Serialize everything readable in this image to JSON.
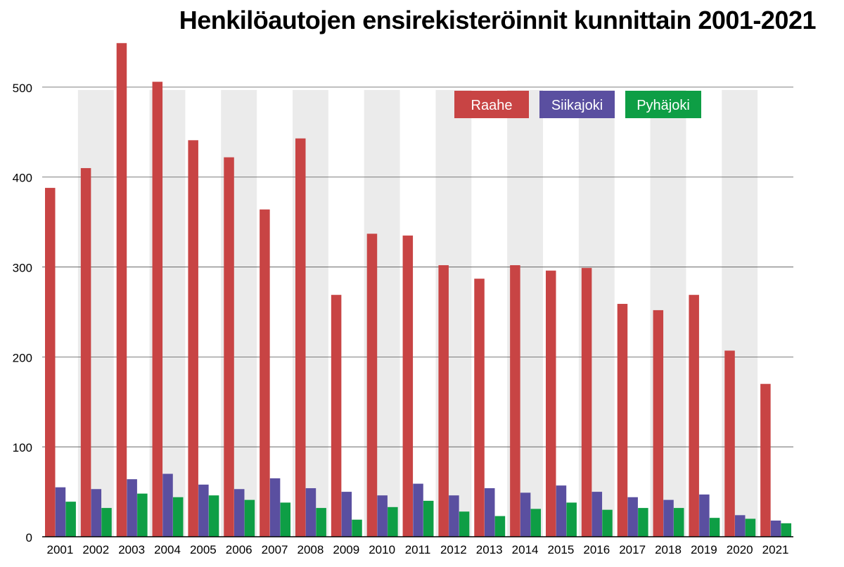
{
  "chart_data": {
    "type": "bar",
    "title": "Henkilöautojen ensirekisteröinnit kunnittain 2001-2021",
    "xlabel": "",
    "ylabel": "",
    "ylim": [
      0,
      550
    ],
    "yticks": [
      0,
      100,
      200,
      300,
      400,
      500
    ],
    "grid": true,
    "legend_position": "top-right",
    "categories": [
      "2001",
      "2002",
      "2003",
      "2004",
      "2005",
      "2006",
      "2007",
      "2008",
      "2009",
      "2010",
      "2011",
      "2012",
      "2013",
      "2014",
      "2015",
      "2016",
      "2017",
      "2018",
      "2019",
      "2020",
      "2021"
    ],
    "series": [
      {
        "name": "Raahe",
        "color": "#c84444",
        "values": [
          388,
          410,
          549,
          506,
          441,
          422,
          364,
          443,
          269,
          337,
          335,
          302,
          287,
          302,
          296,
          299,
          259,
          252,
          269,
          207,
          170
        ]
      },
      {
        "name": "Siikajoki",
        "color": "#5a4fa0",
        "values": [
          55,
          53,
          64,
          70,
          58,
          53,
          65,
          54,
          50,
          46,
          59,
          46,
          54,
          49,
          57,
          50,
          44,
          41,
          47,
          24,
          18
        ]
      },
      {
        "name": "Pyhäjoki",
        "color": "#0e9e45",
        "values": [
          39,
          32,
          48,
          44,
          46,
          41,
          38,
          32,
          19,
          33,
          40,
          28,
          23,
          31,
          38,
          30,
          32,
          32,
          21,
          20,
          15
        ]
      }
    ]
  }
}
